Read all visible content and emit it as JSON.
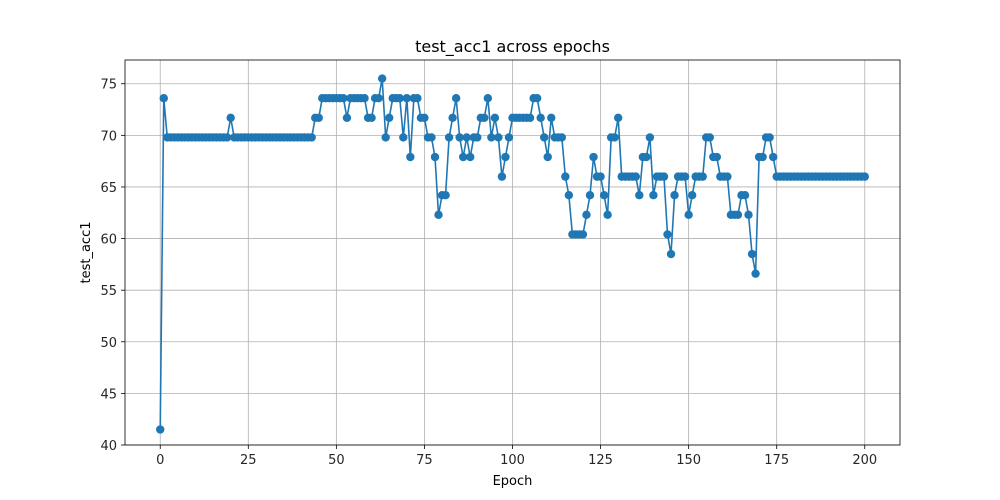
{
  "chart_data": {
    "type": "line",
    "title": "test_acc1 across epochs",
    "xlabel": "Epoch",
    "ylabel": "test_acc1",
    "xlim": [
      -10,
      210
    ],
    "ylim": [
      40.0,
      77.3
    ],
    "xticks": [
      0,
      25,
      50,
      75,
      100,
      125,
      150,
      175,
      200
    ],
    "yticks": [
      40,
      45,
      50,
      55,
      60,
      65,
      70,
      75
    ],
    "grid": true,
    "legend": "none",
    "series": [
      {
        "color": "#1f77b4",
        "marker": "circle",
        "x": [
          0,
          1,
          2,
          3,
          4,
          5,
          6,
          7,
          8,
          9,
          10,
          11,
          12,
          13,
          14,
          15,
          16,
          17,
          18,
          19,
          20,
          21,
          22,
          23,
          24,
          25,
          26,
          27,
          28,
          29,
          30,
          31,
          32,
          33,
          34,
          35,
          36,
          37,
          38,
          39,
          40,
          41,
          42,
          43,
          44,
          45,
          46,
          47,
          48,
          49,
          50,
          51,
          52,
          53,
          54,
          55,
          56,
          57,
          58,
          59,
          60,
          61,
          62,
          63,
          64,
          65,
          66,
          67,
          68,
          69,
          70,
          71,
          72,
          73,
          74,
          75,
          76,
          77,
          78,
          79,
          80,
          81,
          82,
          83,
          84,
          85,
          86,
          87,
          88,
          89,
          90,
          91,
          92,
          93,
          94,
          95,
          96,
          97,
          98,
          99,
          100,
          101,
          102,
          103,
          104,
          105,
          106,
          107,
          108,
          109,
          110,
          111,
          112,
          113,
          114,
          115,
          116,
          117,
          118,
          119,
          120,
          121,
          122,
          123,
          124,
          125,
          126,
          127,
          128,
          129,
          130,
          131,
          132,
          133,
          134,
          135,
          136,
          137,
          138,
          139,
          140,
          141,
          142,
          143,
          144,
          145,
          146,
          147,
          148,
          149,
          150,
          151,
          152,
          153,
          154,
          155,
          156,
          157,
          158,
          159,
          160,
          161,
          162,
          163,
          164,
          165,
          166,
          167,
          168,
          169,
          170,
          171,
          172,
          173,
          174,
          175,
          176,
          177,
          178,
          179,
          180,
          181,
          182,
          183,
          184,
          185,
          186,
          187,
          188,
          189,
          190,
          191,
          192,
          193,
          194,
          195,
          196,
          197,
          198,
          199,
          200
        ],
        "y": [
          41.5,
          73.6,
          69.8,
          69.8,
          69.8,
          69.8,
          69.8,
          69.8,
          69.8,
          69.8,
          69.8,
          69.8,
          69.8,
          69.8,
          69.8,
          69.8,
          69.8,
          69.8,
          69.8,
          69.8,
          71.7,
          69.8,
          69.8,
          69.8,
          69.8,
          69.8,
          69.8,
          69.8,
          69.8,
          69.8,
          69.8,
          69.8,
          69.8,
          69.8,
          69.8,
          69.8,
          69.8,
          69.8,
          69.8,
          69.8,
          69.8,
          69.8,
          69.8,
          69.8,
          71.7,
          71.7,
          73.6,
          73.6,
          73.6,
          73.6,
          73.6,
          73.6,
          73.6,
          71.7,
          73.6,
          73.6,
          73.6,
          73.6,
          73.6,
          71.7,
          71.7,
          73.6,
          73.6,
          75.5,
          69.8,
          71.7,
          73.6,
          73.6,
          73.6,
          69.8,
          73.6,
          67.9,
          73.6,
          73.6,
          71.7,
          71.7,
          69.8,
          69.8,
          67.9,
          62.3,
          64.2,
          64.2,
          69.8,
          71.7,
          73.6,
          69.8,
          67.9,
          69.8,
          67.9,
          69.8,
          69.8,
          71.7,
          71.7,
          73.6,
          69.8,
          71.7,
          69.8,
          66.0,
          67.9,
          69.8,
          71.7,
          71.7,
          71.7,
          71.7,
          71.7,
          71.7,
          73.6,
          73.6,
          71.7,
          69.8,
          67.9,
          71.7,
          69.8,
          69.8,
          69.8,
          66.0,
          64.2,
          60.4,
          60.4,
          60.4,
          60.4,
          62.3,
          64.2,
          67.9,
          66.0,
          66.0,
          64.2,
          62.3,
          69.8,
          69.8,
          71.7,
          66.0,
          66.0,
          66.0,
          66.0,
          66.0,
          64.2,
          67.9,
          67.9,
          69.8,
          64.2,
          66.0,
          66.0,
          66.0,
          60.4,
          58.5,
          64.2,
          66.0,
          66.0,
          66.0,
          62.3,
          64.2,
          66.0,
          66.0,
          66.0,
          69.8,
          69.8,
          67.9,
          67.9,
          66.0,
          66.0,
          66.0,
          62.3,
          62.3,
          62.3,
          64.2,
          64.2,
          62.3,
          58.5,
          56.6,
          67.9,
          67.9,
          69.8,
          69.8,
          67.9,
          66.0,
          66.0,
          66.0,
          66.0,
          66.0,
          66.0,
          66.0,
          66.0,
          66.0,
          66.0,
          66.0,
          66.0,
          66.0,
          66.0,
          66.0,
          66.0,
          66.0,
          66.0,
          66.0,
          66.0,
          66.0,
          66.0,
          66.0,
          66.0,
          66.0,
          66.0
        ]
      }
    ]
  }
}
